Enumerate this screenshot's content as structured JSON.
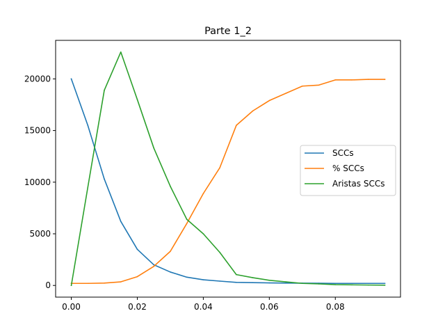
{
  "chart_data": {
    "type": "line",
    "title": "Parte 1_2",
    "xlabel": "",
    "ylabel": "",
    "xlim": [
      -0.00475,
      0.09975
    ],
    "ylim": [
      -1130,
      23730
    ],
    "x_ticks": [
      0.0,
      0.02,
      0.04,
      0.06,
      0.08
    ],
    "x_tick_labels": [
      "0.00",
      "0.02",
      "0.04",
      "0.06",
      "0.08"
    ],
    "y_ticks": [
      0,
      5000,
      10000,
      15000,
      20000
    ],
    "y_tick_labels": [
      "0",
      "5000",
      "10000",
      "15000",
      "20000"
    ],
    "grid": false,
    "legend_position": "center-right",
    "x": [
      0.0,
      0.005,
      0.01,
      0.015,
      0.02,
      0.025,
      0.03,
      0.035,
      0.04,
      0.045,
      0.05,
      0.055,
      0.06,
      0.065,
      0.07,
      0.075,
      0.08,
      0.085,
      0.09,
      0.095
    ],
    "series": [
      {
        "name": "SCCs",
        "color": "#1f77b4",
        "values": [
          20000,
          15500,
          10300,
          6200,
          3500,
          2000,
          1300,
          800,
          550,
          420,
          300,
          270,
          250,
          230,
          220,
          210,
          200,
          200,
          200,
          200
        ]
      },
      {
        "name": "% SCCs",
        "color": "#ff7f0e",
        "values": [
          200,
          200,
          230,
          350,
          850,
          1850,
          3300,
          6000,
          8900,
          11400,
          15500,
          16900,
          17900,
          18600,
          19300,
          19400,
          19900,
          19900,
          19950,
          19950
        ]
      },
      {
        "name": "Aristas SCCs",
        "color": "#2ca02c",
        "values": [
          0,
          9500,
          18900,
          22600,
          18000,
          13300,
          9600,
          6400,
          5000,
          3200,
          1050,
          750,
          500,
          350,
          200,
          150,
          80,
          60,
          40,
          30
        ]
      }
    ]
  }
}
